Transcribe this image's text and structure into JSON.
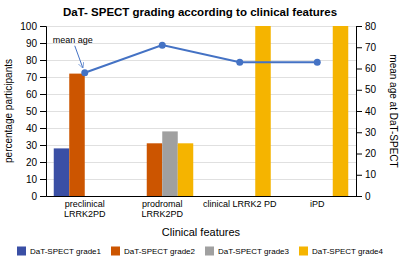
{
  "chart_data": {
    "type": "bar",
    "title": "DaT- SPECT grading according to clinical features",
    "xlabel": "Clinical features",
    "ylabel": "percentage participants",
    "y2label": "mean age at DaT-SPECT",
    "categories": [
      "preclinical\nLRRK2PD",
      "prodromal\nLRRK2PD",
      "clinical LRRK2 PD",
      "iPD"
    ],
    "series": [
      {
        "name": "DaT-SPECT grade1",
        "color": "#3a4fa5",
        "values": [
          28,
          0,
          0,
          0
        ]
      },
      {
        "name": "DaT-SPECT grade2",
        "color": "#cc5500",
        "values": [
          72,
          31,
          0,
          0
        ]
      },
      {
        "name": "DaT-SPECT grade3",
        "color": "#a0a0a0",
        "values": [
          0,
          38,
          0,
          0
        ]
      },
      {
        "name": "DaT-SPECT grade4",
        "color": "#f5b400",
        "values": [
          0,
          31,
          100,
          100
        ]
      },
      {
        "type": "line",
        "axis": "y2",
        "color": "#4472c4",
        "marker": "circle",
        "values": [
          58,
          71,
          63,
          63
        ]
      }
    ],
    "ylim": [
      0,
      100
    ],
    "yticks": [
      0,
      10,
      20,
      30,
      40,
      50,
      60,
      70,
      80,
      90,
      100
    ],
    "y2lim": [
      0,
      80
    ],
    "y2ticks": [
      0,
      10,
      20,
      30,
      40,
      50,
      60,
      70,
      80
    ],
    "grid": true,
    "legend": "bottom",
    "annotation": "mean age"
  }
}
